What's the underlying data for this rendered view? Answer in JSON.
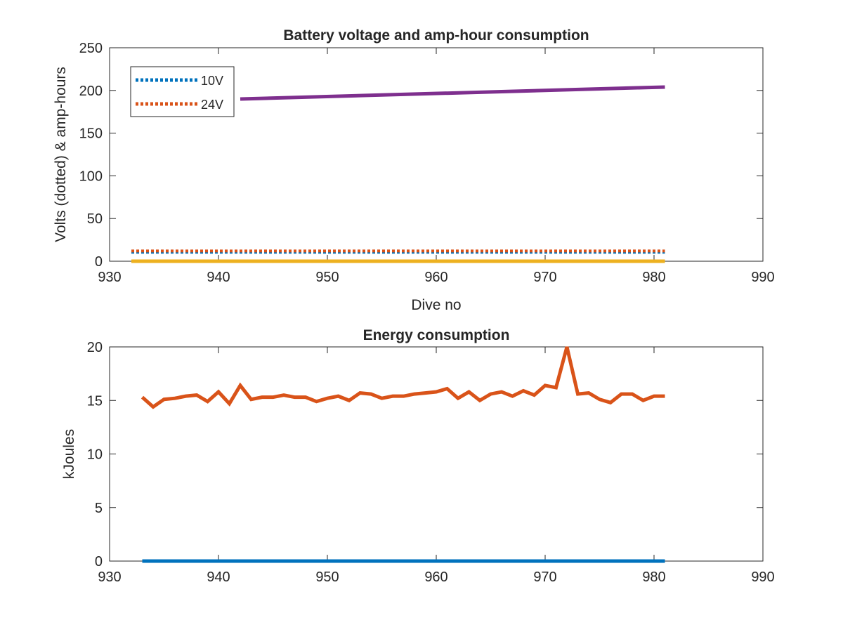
{
  "chart_data": [
    {
      "type": "line",
      "title": "Battery voltage and amp-hour consumption",
      "xlabel": "Dive no",
      "ylabel": "Volts (dotted) & amp-hours",
      "xlim": [
        930,
        990
      ],
      "ylim": [
        0,
        250
      ],
      "xticks": [
        "930",
        "940",
        "950",
        "960",
        "970",
        "980",
        "990"
      ],
      "yticks": [
        "0",
        "50",
        "100",
        "150",
        "200",
        "250"
      ],
      "grid": false,
      "legend_position": "top-left",
      "series": [
        {
          "name": "10V",
          "style": "dotted",
          "color": "#0072BD",
          "x": [
            932,
            981
          ],
          "y": [
            10.5,
            10.5
          ]
        },
        {
          "name": "24V",
          "style": "dotted",
          "color": "#D95319",
          "x": [
            932,
            981
          ],
          "y": [
            12,
            12
          ]
        },
        {
          "style": "solid",
          "color": "#EDB120",
          "x": [
            932,
            981
          ],
          "y": [
            0,
            0
          ]
        },
        {
          "style": "solid",
          "color": "#7E2F8E",
          "x": [
            942,
            981
          ],
          "y": [
            190,
            204
          ]
        }
      ]
    },
    {
      "type": "line",
      "title": "Energy consumption",
      "xlabel": "",
      "ylabel": "kJoules",
      "xlim": [
        930,
        990
      ],
      "ylim": [
        0,
        20
      ],
      "xticks": [
        "930",
        "940",
        "950",
        "960",
        "970",
        "980",
        "990"
      ],
      "yticks": [
        "0",
        "5",
        "10",
        "15",
        "20"
      ],
      "grid": false,
      "series": [
        {
          "style": "solid",
          "color": "#0072BD",
          "x": [
            933,
            981
          ],
          "y": [
            0,
            0
          ]
        },
        {
          "style": "solid",
          "color": "#D95319",
          "x": [
            933,
            934,
            935,
            936,
            937,
            938,
            939,
            940,
            941,
            942,
            943,
            944,
            945,
            946,
            947,
            948,
            949,
            950,
            951,
            952,
            953,
            954,
            955,
            956,
            957,
            958,
            959,
            960,
            961,
            962,
            963,
            964,
            965,
            966,
            967,
            968,
            969,
            970,
            971,
            972,
            973,
            974,
            975,
            976,
            977,
            978,
            979,
            980,
            981
          ],
          "y": [
            15.3,
            14.4,
            15.1,
            15.2,
            15.4,
            15.5,
            14.9,
            15.8,
            14.7,
            16.4,
            15.1,
            15.3,
            15.3,
            15.5,
            15.3,
            15.3,
            14.9,
            15.2,
            15.4,
            15.0,
            15.7,
            15.6,
            15.2,
            15.4,
            15.4,
            15.6,
            15.7,
            15.8,
            16.1,
            15.2,
            15.8,
            15.0,
            15.6,
            15.8,
            15.4,
            15.9,
            15.5,
            16.4,
            16.2,
            20.0,
            15.6,
            15.7,
            15.1,
            14.8,
            15.6,
            15.6,
            15.0,
            15.4,
            15.4
          ]
        }
      ]
    }
  ]
}
